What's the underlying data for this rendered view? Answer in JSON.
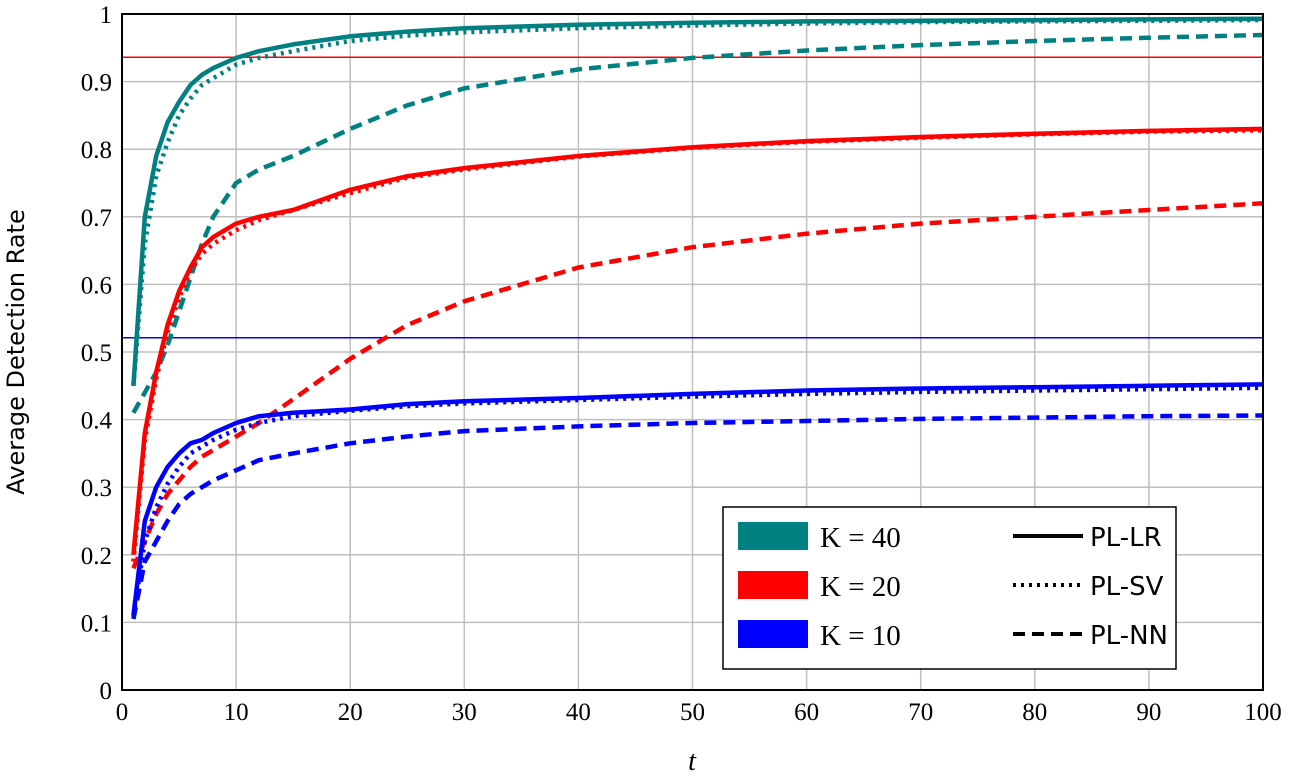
{
  "chart_data": {
    "type": "line",
    "title": "",
    "xlabel": "t",
    "ylabel": "Average Detection Rate",
    "xlim": [
      0,
      100
    ],
    "ylim": [
      0,
      1
    ],
    "grid": true,
    "xticks": [
      "0",
      "10",
      "20",
      "30",
      "40",
      "50",
      "60",
      "70",
      "80",
      "90",
      "100"
    ],
    "yticks": [
      "0",
      "0.1",
      "0.2",
      "0.3",
      "0.4",
      "0.5",
      "0.6",
      "0.7",
      "0.8",
      "0.9",
      "1"
    ],
    "legend_position": "lower right",
    "legend": {
      "colors": [
        {
          "label": "K = 40",
          "color": "#008080"
        },
        {
          "label": "K = 20",
          "color": "#ff0000"
        },
        {
          "label": "K = 10",
          "color": "#0000ff"
        }
      ],
      "styles": [
        {
          "label": "PL-LR",
          "style": "solid"
        },
        {
          "label": "PL-SV",
          "style": "dotted"
        },
        {
          "label": "PL-NN",
          "style": "dashed"
        }
      ]
    },
    "reference_lines": [
      {
        "y": 0.936,
        "color": "#ff0000",
        "orientation": "horizontal"
      },
      {
        "y": 0.521,
        "color": "#0000ff",
        "orientation": "horizontal"
      }
    ],
    "x": [
      1,
      2,
      3,
      4,
      5,
      6,
      7,
      8,
      10,
      12,
      15,
      20,
      25,
      30,
      40,
      50,
      60,
      70,
      80,
      90,
      100
    ],
    "series": [
      {
        "name": "K=40 PL-LR",
        "color": "#008080",
        "style": "solid",
        "values": [
          0.45,
          0.7,
          0.79,
          0.84,
          0.87,
          0.895,
          0.91,
          0.92,
          0.935,
          0.945,
          0.955,
          0.967,
          0.974,
          0.979,
          0.984,
          0.987,
          0.989,
          0.99,
          0.991,
          0.992,
          0.993
        ]
      },
      {
        "name": "K=40 PL-SV",
        "color": "#008080",
        "style": "dotted",
        "values": [
          0.45,
          0.66,
          0.76,
          0.81,
          0.85,
          0.875,
          0.895,
          0.905,
          0.925,
          0.935,
          0.945,
          0.96,
          0.968,
          0.973,
          0.979,
          0.983,
          0.986,
          0.988,
          0.989,
          0.99,
          0.991
        ]
      },
      {
        "name": "K=40 PL-NN",
        "color": "#008080",
        "style": "dashed",
        "values": [
          0.41,
          0.44,
          0.47,
          0.51,
          0.56,
          0.61,
          0.66,
          0.7,
          0.75,
          0.77,
          0.79,
          0.83,
          0.865,
          0.89,
          0.918,
          0.935,
          0.946,
          0.954,
          0.96,
          0.965,
          0.969
        ]
      },
      {
        "name": "K=20 PL-LR",
        "color": "#ff0000",
        "style": "solid",
        "values": [
          0.2,
          0.38,
          0.47,
          0.54,
          0.59,
          0.625,
          0.655,
          0.67,
          0.69,
          0.7,
          0.71,
          0.74,
          0.76,
          0.772,
          0.79,
          0.803,
          0.812,
          0.818,
          0.823,
          0.827,
          0.83
        ]
      },
      {
        "name": "K=20 PL-SV",
        "color": "#ff0000",
        "style": "dotted",
        "values": [
          0.19,
          0.37,
          0.46,
          0.53,
          0.58,
          0.62,
          0.645,
          0.66,
          0.68,
          0.695,
          0.71,
          0.735,
          0.758,
          0.77,
          0.789,
          0.802,
          0.811,
          0.817,
          0.822,
          0.826,
          0.828
        ]
      },
      {
        "name": "K=20 PL-NN",
        "color": "#ff0000",
        "style": "dashed",
        "values": [
          0.18,
          0.22,
          0.26,
          0.29,
          0.31,
          0.33,
          0.345,
          0.355,
          0.375,
          0.395,
          0.43,
          0.49,
          0.54,
          0.575,
          0.625,
          0.655,
          0.675,
          0.69,
          0.7,
          0.71,
          0.72
        ]
      },
      {
        "name": "K=10 PL-LR",
        "color": "#0000ff",
        "style": "solid",
        "values": [
          0.11,
          0.25,
          0.3,
          0.33,
          0.35,
          0.365,
          0.37,
          0.38,
          0.395,
          0.405,
          0.41,
          0.415,
          0.423,
          0.427,
          0.432,
          0.438,
          0.443,
          0.446,
          0.448,
          0.45,
          0.452
        ]
      },
      {
        "name": "K=10 PL-SV",
        "color": "#0000ff",
        "style": "dotted",
        "values": [
          0.11,
          0.22,
          0.27,
          0.305,
          0.33,
          0.35,
          0.36,
          0.37,
          0.385,
          0.395,
          0.405,
          0.413,
          0.42,
          0.424,
          0.429,
          0.434,
          0.438,
          0.441,
          0.443,
          0.445,
          0.447
        ]
      },
      {
        "name": "K=10 PL-NN",
        "color": "#0000ff",
        "style": "dashed",
        "values": [
          0.105,
          0.19,
          0.22,
          0.25,
          0.275,
          0.29,
          0.3,
          0.31,
          0.325,
          0.34,
          0.35,
          0.365,
          0.375,
          0.383,
          0.39,
          0.395,
          0.398,
          0.401,
          0.403,
          0.405,
          0.406
        ]
      }
    ]
  }
}
